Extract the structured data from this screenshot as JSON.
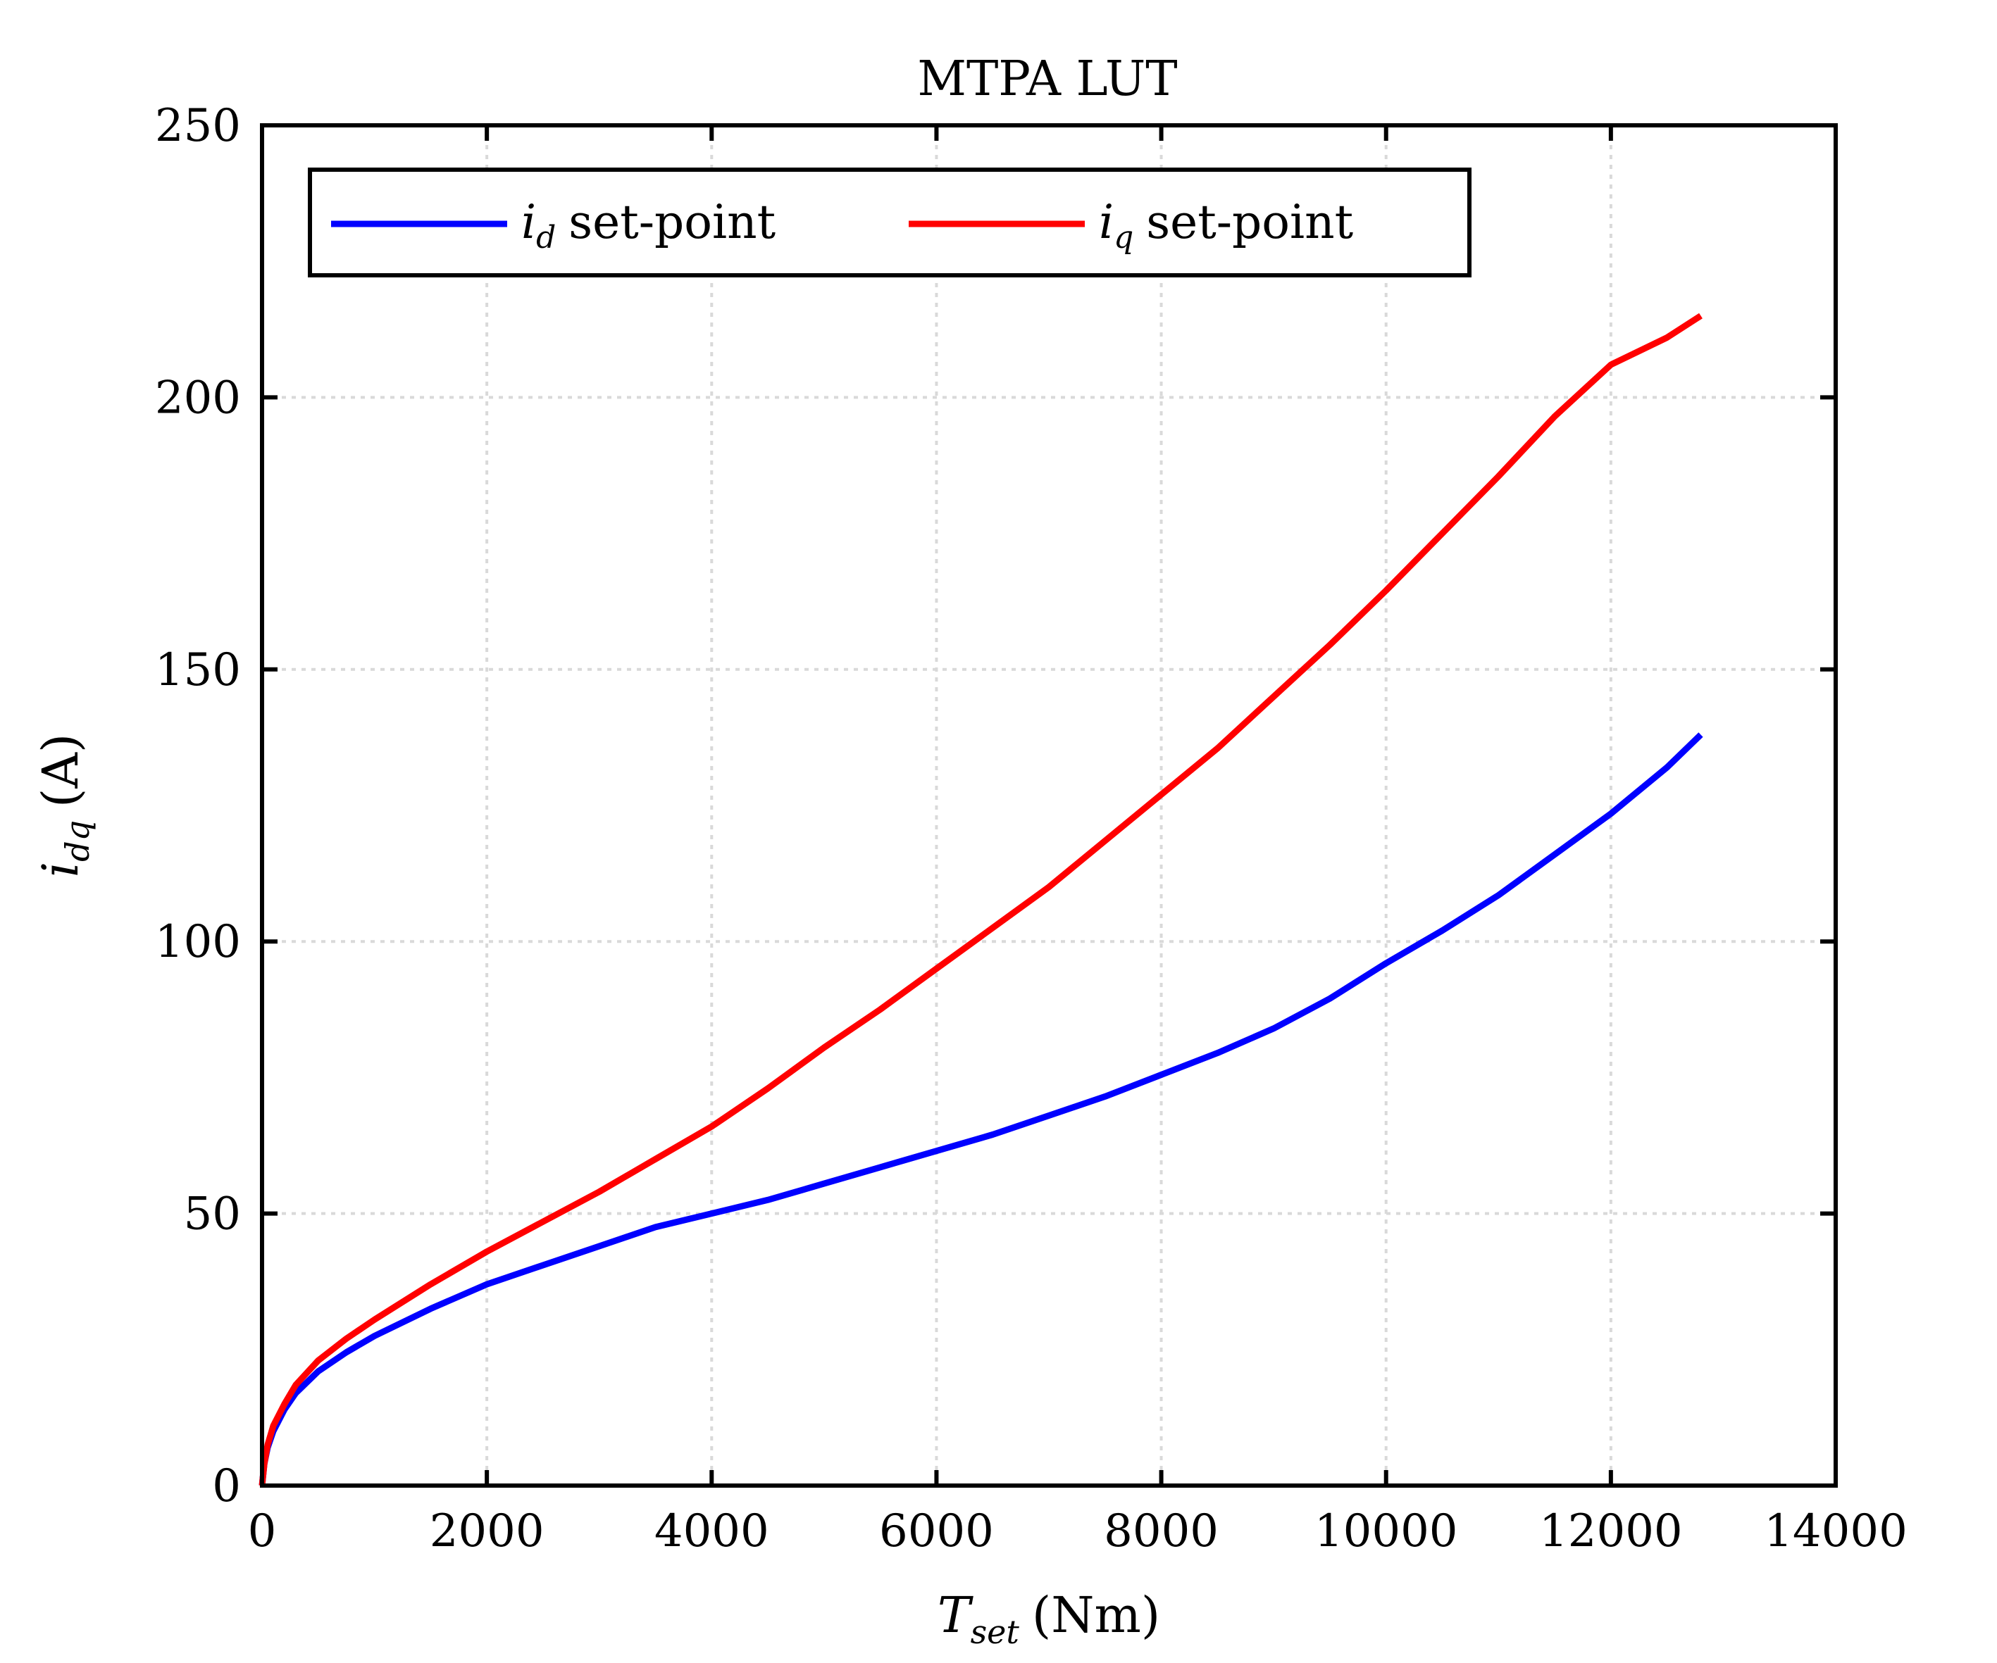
{
  "chart_data": {
    "type": "line",
    "title": "MTPA LUT",
    "xlabel": {
      "main": "T",
      "sub": "set",
      "unit": "(Nm)"
    },
    "ylabel": {
      "main": "i",
      "sub": "dq",
      "unit": "(A)"
    },
    "xlim": [
      0,
      14000
    ],
    "ylim": [
      0,
      250
    ],
    "xticks": [
      0,
      2000,
      4000,
      6000,
      8000,
      10000,
      12000,
      14000
    ],
    "yticks": [
      0,
      50,
      100,
      150,
      200,
      250
    ],
    "grid": true,
    "legend_placement": "top-left",
    "series": [
      {
        "name": "i_d set-point",
        "legend_main": "i",
        "legend_sub": "d",
        "legend_text": "set-point",
        "color": "#0000ff",
        "x": [
          0,
          20,
          50,
          100,
          200,
          300,
          500,
          750,
          1000,
          1500,
          2000,
          2500,
          3000,
          3500,
          4000,
          4500,
          5000,
          5500,
          6000,
          6500,
          7000,
          7500,
          8000,
          8500,
          9000,
          9500,
          10000,
          10500,
          11000,
          11500,
          12000,
          12500,
          12800
        ],
        "y": [
          0,
          4,
          7,
          10,
          14,
          17,
          21,
          24.5,
          27.5,
          32.5,
          37,
          40.5,
          44,
          47.5,
          50,
          52.5,
          55.5,
          58.5,
          61.5,
          64.5,
          68,
          71.5,
          75.5,
          79.5,
          84,
          89.5,
          96,
          102,
          108.5,
          116,
          123.5,
          132,
          138
        ]
      },
      {
        "name": "i_q set-point",
        "legend_main": "i",
        "legend_sub": "q",
        "legend_text": "set-point",
        "color": "#ff0000",
        "x": [
          0,
          20,
          50,
          100,
          200,
          300,
          500,
          750,
          1000,
          1500,
          2000,
          2500,
          3000,
          3500,
          4000,
          4500,
          5000,
          5500,
          6000,
          6500,
          7000,
          7500,
          8000,
          8500,
          9000,
          9500,
          10000,
          10500,
          11000,
          11500,
          12000,
          12500,
          12800
        ],
        "y": [
          0,
          4,
          7.5,
          11,
          15,
          18.5,
          23,
          27,
          30.5,
          37,
          43,
          48.5,
          54,
          60,
          66,
          73,
          80.5,
          87.5,
          95,
          102.5,
          110,
          118.5,
          127,
          135.5,
          145,
          154.5,
          164.5,
          175,
          185.5,
          196.5,
          206,
          211,
          215
        ]
      }
    ]
  }
}
